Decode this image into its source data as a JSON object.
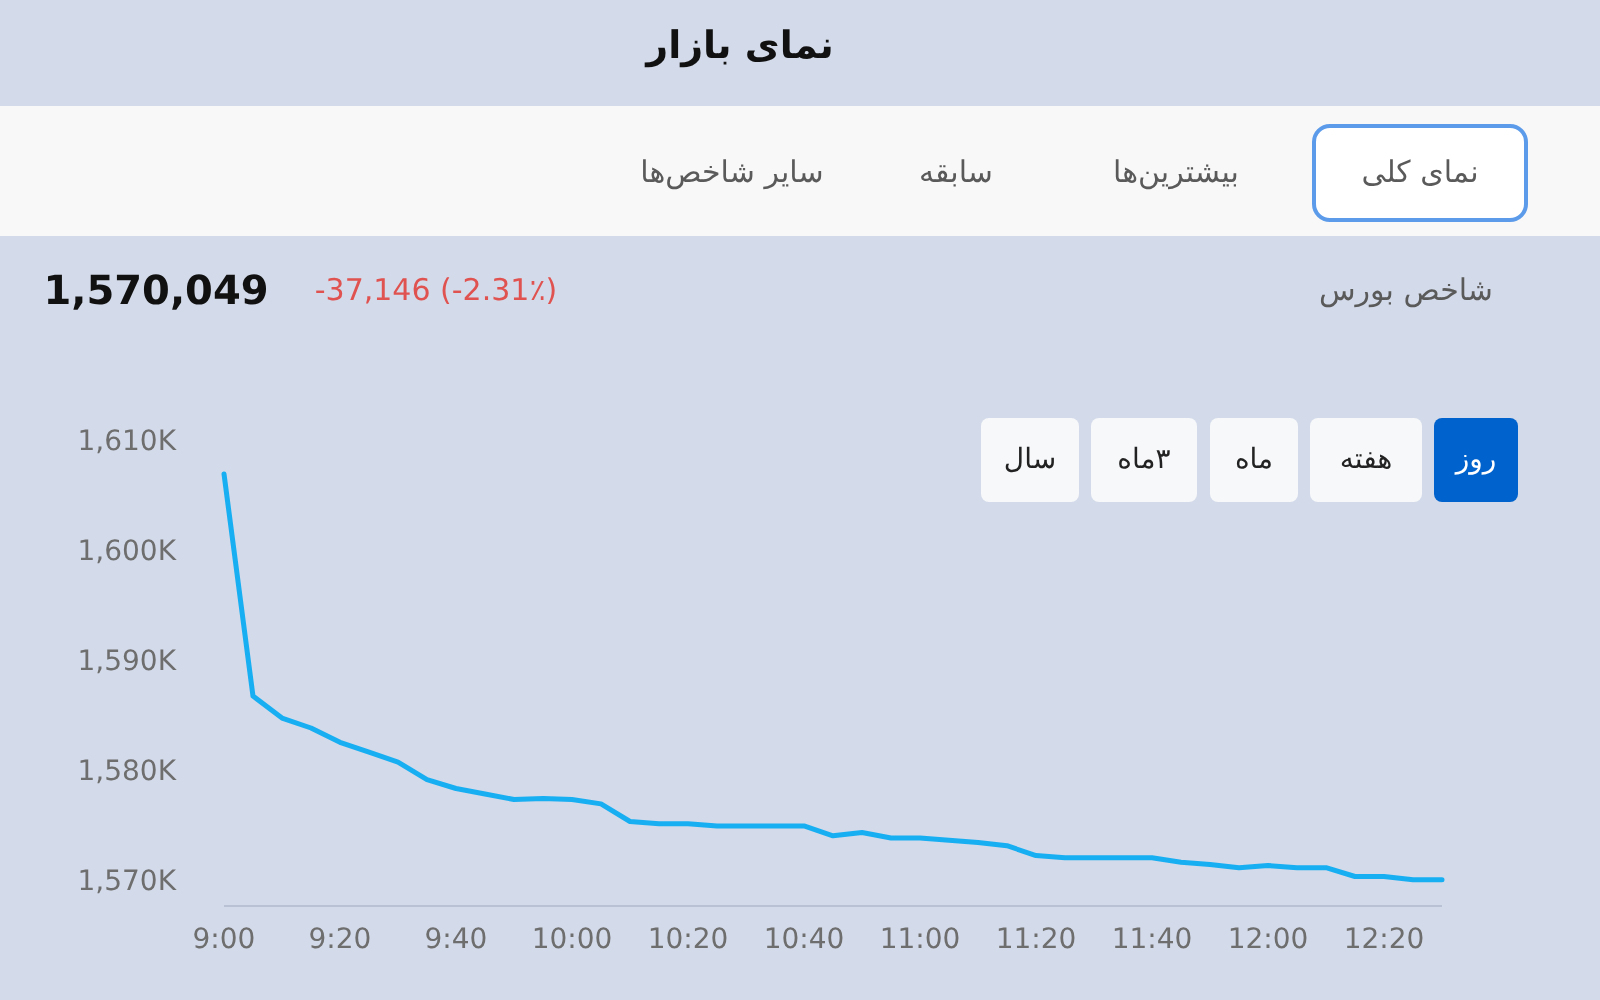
{
  "chart_data": {
    "type": "line",
    "title": "نمای بازار",
    "annotations": [
      "نمای کلی",
      "بیشترین‌ها",
      "سابقه",
      "سایر شاخص‌ها",
      "شاخص بورس",
      "1,570,049",
      "-37,146 (-2.31٪)",
      "روز",
      "هفته",
      "ماه",
      "۳ماه",
      "سال"
    ],
    "x": [
      9,
      9.0833,
      9.1667,
      9.25,
      9.3333,
      9.4167,
      9.5,
      9.5833,
      9.6667,
      9.75,
      9.8333,
      9.9167,
      10,
      10.0833,
      10.1667,
      10.25,
      10.3333,
      10.4167,
      10.5,
      10.5833,
      10.6667,
      10.75,
      10.8333,
      10.9167,
      11,
      11.0833,
      11.1667,
      11.25,
      11.3333,
      11.4167,
      11.5,
      11.5833,
      11.6667,
      11.75,
      11.8333,
      11.9167,
      12,
      12.0833,
      12.1667,
      12.25,
      12.3333,
      12.4167,
      12.5
    ],
    "series": [
      {
        "color": "#18aef2",
        "values": [
          1607.1,
          1586.9,
          1584.9,
          1584.0,
          1582.7,
          1581.8,
          1580.9,
          1579.3,
          1578.5,
          1578.0,
          1577.5,
          1577.6,
          1577.5,
          1577.1,
          1575.5,
          1575.3,
          1575.3,
          1575.1,
          1575.1,
          1575.1,
          1575.1,
          1574.2,
          1574.5,
          1574.0,
          1574.0,
          1573.8,
          1573.6,
          1573.3,
          1572.4,
          1572.2,
          1572.2,
          1572.2,
          1572.2,
          1571.8,
          1571.6,
          1571.3,
          1571.5,
          1571.3,
          1571.3,
          1570.5,
          1570.5,
          1570.2,
          1570.2
        ]
      }
    ],
    "xlim": [
      9,
      12.5
    ],
    "ylim": [
      1570,
      1610
    ],
    "xticks": [
      {
        "value": 9,
        "label": "9:00"
      },
      {
        "value": 9.3333,
        "label": "9:20"
      },
      {
        "value": 9.6667,
        "label": "9:40"
      },
      {
        "value": 10,
        "label": "10:00"
      },
      {
        "value": 10.3333,
        "label": "10:20"
      },
      {
        "value": 10.6667,
        "label": "10:40"
      },
      {
        "value": 11,
        "label": "11:00"
      },
      {
        "value": 11.3333,
        "label": "11:20"
      },
      {
        "value": 11.6667,
        "label": "11:40"
      },
      {
        "value": 12,
        "label": "12:00"
      },
      {
        "value": 12.3333,
        "label": "12:20"
      }
    ],
    "yticks": [
      {
        "value": 1570,
        "label": "1,570K"
      },
      {
        "value": 1580,
        "label": "1,580K"
      },
      {
        "value": 1590,
        "label": "1,590K"
      },
      {
        "value": 1600,
        "label": "1,600K"
      },
      {
        "value": 1610,
        "label": "1,610K"
      }
    ],
    "grid": false,
    "marker": "none"
  }
}
